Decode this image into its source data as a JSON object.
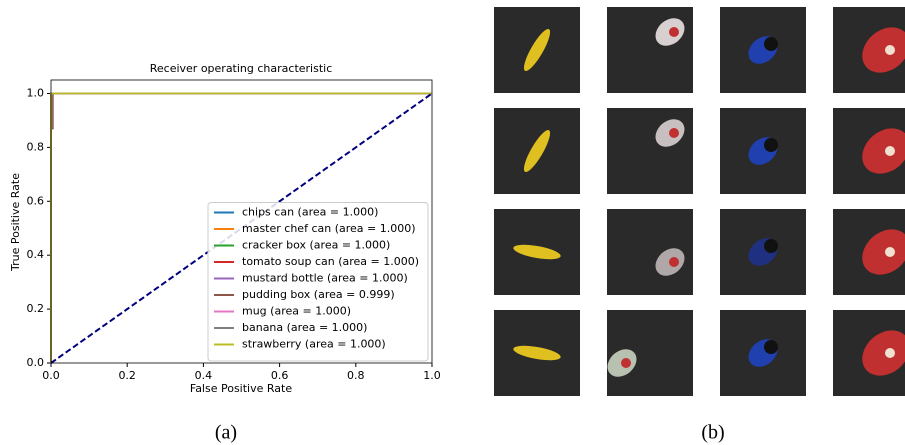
{
  "chart_data": {
    "type": "line",
    "title": "Receiver operating characteristic",
    "x_label": "False Positive Rate",
    "y_label": "True Positive Rate",
    "xlim": [
      0,
      1
    ],
    "ylim": [
      0,
      1.05
    ],
    "xticks": [
      {
        "value": 0,
        "label": "0.0"
      },
      0.2,
      0.4,
      0.6,
      0.8,
      {
        "value": 1,
        "label": "1.0"
      }
    ],
    "yticks": [
      {
        "value": 0,
        "label": "0.0"
      },
      0.2,
      0.4,
      0.6,
      0.8,
      {
        "value": 1,
        "label": "1.0"
      }
    ],
    "legend": "lower right",
    "series": [
      {
        "name": "chips can (area = 1.000)",
        "color": "#1f77b4",
        "x": [
          0,
          0,
          1
        ],
        "values": [
          0,
          1,
          1
        ]
      },
      {
        "name": "master chef can (area = 1.000)",
        "color": "#ff7f0e",
        "x": [
          0,
          0,
          1
        ],
        "values": [
          0,
          1,
          1
        ]
      },
      {
        "name": "cracker box (area = 1.000)",
        "color": "#2ca02c",
        "x": [
          0,
          0,
          1
        ],
        "values": [
          0,
          1,
          1
        ]
      },
      {
        "name": "tomato soup can (area = 1.000)",
        "color": "#d62728",
        "x": [
          0,
          0,
          1
        ],
        "values": [
          0,
          1,
          1
        ]
      },
      {
        "name": "mustard bottle (area = 1.000)",
        "color": "#9467bd",
        "x": [
          0,
          0,
          1
        ],
        "values": [
          0,
          1,
          1
        ]
      },
      {
        "name": "pudding box (area = 0.999)",
        "color": "#8c564b",
        "x": [
          0,
          0,
          0.005,
          0.005,
          1
        ],
        "values": [
          0,
          0.87,
          0.87,
          1,
          1
        ]
      },
      {
        "name": "mug (area = 1.000)",
        "color": "#e377c2",
        "x": [
          0,
          0,
          1
        ],
        "values": [
          0,
          1,
          1
        ]
      },
      {
        "name": "banana (area = 1.000)",
        "color": "#7f7f7f",
        "x": [
          0,
          0,
          1
        ],
        "values": [
          0,
          1,
          1
        ]
      },
      {
        "name": "strawberry (area = 1.000)",
        "color": "#bcbd22",
        "x": [
          0,
          0,
          1
        ],
        "values": [
          0,
          1,
          1
        ]
      },
      {
        "color": "#000080",
        "dash": true,
        "x": [
          0,
          1
        ],
        "values": [
          0,
          1
        ]
      }
    ]
  },
  "captions": [
    "(a)",
    "(b)"
  ]
}
